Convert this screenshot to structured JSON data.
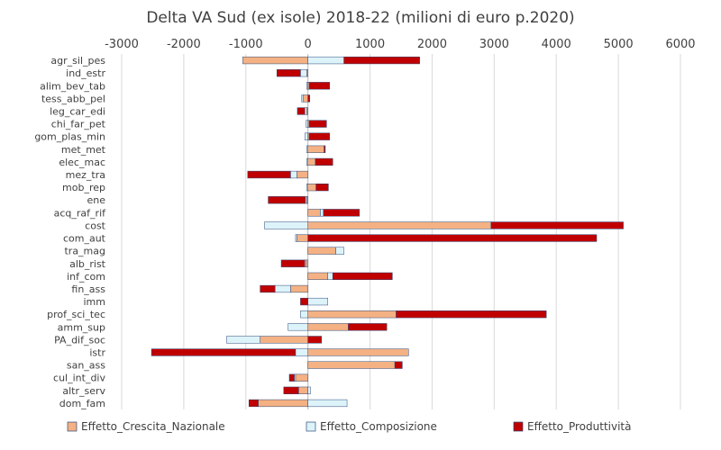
{
  "chart_data": {
    "type": "bar",
    "orientation": "horizontal",
    "stacked": true,
    "title": "Delta VA Sud (ex isole) 2018-22 (milioni di euro p.2020)",
    "xlim": [
      -3000,
      6000
    ],
    "xticks": [
      -3000,
      -2000,
      -1000,
      0,
      1000,
      2000,
      3000,
      4000,
      5000,
      6000
    ],
    "x_axis_position": "top",
    "grid": true,
    "legend_position": "bottom",
    "categories": [
      "agr_sil_pes",
      "ind_estr",
      "alim_bev_tab",
      "tess_abb_pel",
      "leg_car_edi",
      "chi_far_pet",
      "gom_plas_min",
      "met_met",
      "elec_mac",
      "mez_tra",
      "mob_rep",
      "ene",
      "acq_raf_rif",
      "cost",
      "com_aut",
      "tra_mag",
      "alb_rist",
      "inf_com",
      "fin_ass",
      "imm",
      "prof_sci_tec",
      "amm_sup",
      "PA_dif_soc",
      "istr",
      "san_ass",
      "cul_int_div",
      "altr_serv",
      "dom_fam"
    ],
    "series": [
      {
        "name": "Effetto_Crescita_Nazionale",
        "color": "#F4B183",
        "values": [
          -1050,
          -20,
          20,
          -80,
          -20,
          20,
          20,
          260,
          120,
          -180,
          130,
          -20,
          200,
          2950,
          -180,
          450,
          -30,
          320,
          -280,
          0,
          1420,
          650,
          -770,
          1620,
          1400,
          -200,
          -150,
          -800
        ]
      },
      {
        "name": "Effetto_Composizione",
        "color": "#DDF3FA",
        "values": [
          580,
          -100,
          -20,
          -20,
          -30,
          -30,
          -50,
          -20,
          -20,
          -100,
          -20,
          -20,
          50,
          -700,
          -20,
          130,
          -20,
          80,
          -250,
          320,
          -120,
          -320,
          -540,
          -200,
          0,
          -20,
          40,
          630
        ]
      },
      {
        "name": "Effetto_Produttività",
        "color": "#C00000",
        "values": [
          1220,
          -380,
          330,
          30,
          -120,
          280,
          330,
          20,
          280,
          -690,
          200,
          -600,
          580,
          2130,
          4650,
          0,
          -380,
          960,
          -240,
          -120,
          2420,
          620,
          220,
          -2320,
          120,
          -80,
          -240,
          -150
        ]
      }
    ]
  }
}
